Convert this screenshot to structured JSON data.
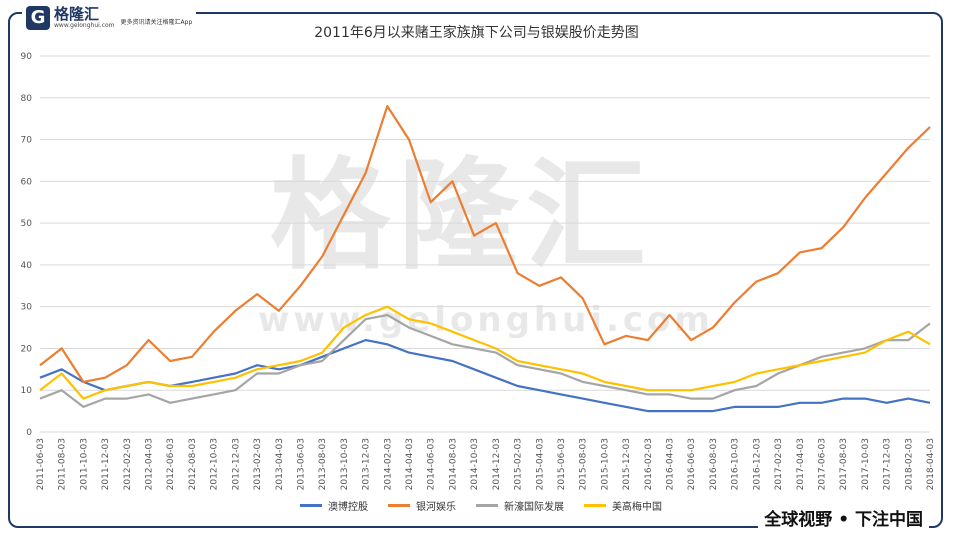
{
  "brand": {
    "logo_glyph": "G",
    "name": "格隆汇",
    "url": "www.gelonghui.com",
    "slogan": "更多资讯请关注格隆汇App"
  },
  "watermark": {
    "text": "格隆汇",
    "url": "www.gelonghui.com"
  },
  "footer_slogan": "全球视野 • 下注中国",
  "chart_data": {
    "type": "line",
    "title": "2011年6月以来赌王家族旗下公司与银娱股价走势图",
    "xlabel": "",
    "ylabel": "",
    "ylim": [
      0,
      90
    ],
    "yticks": [
      0,
      10,
      20,
      30,
      40,
      50,
      60,
      70,
      80,
      90
    ],
    "grid": true,
    "legend_position": "bottom",
    "x": [
      "2011-06-03",
      "2011-08-03",
      "2011-10-03",
      "2011-12-03",
      "2012-02-03",
      "2012-04-03",
      "2012-06-03",
      "2012-08-03",
      "2012-10-03",
      "2012-12-03",
      "2013-02-03",
      "2013-04-03",
      "2013-06-03",
      "2013-08-03",
      "2013-10-03",
      "2013-12-03",
      "2014-02-03",
      "2014-04-03",
      "2014-06-03",
      "2014-08-03",
      "2014-10-03",
      "2014-12-03",
      "2015-02-03",
      "2015-04-03",
      "2015-06-03",
      "2015-08-03",
      "2015-10-03",
      "2015-12-03",
      "2016-02-03",
      "2016-04-03",
      "2016-06-03",
      "2016-08-03",
      "2016-10-03",
      "2016-12-03",
      "2017-02-03",
      "2017-04-03",
      "2017-06-03",
      "2017-08-03",
      "2017-10-03",
      "2017-12-03",
      "2018-02-03",
      "2018-04-03"
    ],
    "series": [
      {
        "name": "澳博控股",
        "color": "#4472c4",
        "values": [
          13,
          15,
          12,
          10,
          11,
          12,
          11,
          12,
          13,
          14,
          16,
          15,
          16,
          18,
          20,
          22,
          21,
          19,
          18,
          17,
          15,
          13,
          11,
          10,
          9,
          8,
          7,
          6,
          5,
          5,
          5,
          5,
          6,
          6,
          6,
          7,
          7,
          8,
          8,
          7,
          8,
          7
        ]
      },
      {
        "name": "银河娱乐",
        "color": "#ed7d31",
        "values": [
          16,
          20,
          12,
          13,
          16,
          22,
          17,
          18,
          24,
          29,
          33,
          29,
          35,
          42,
          52,
          62,
          78,
          70,
          55,
          60,
          47,
          50,
          38,
          35,
          37,
          32,
          21,
          23,
          22,
          28,
          22,
          25,
          31,
          36,
          38,
          43,
          44,
          49,
          56,
          62,
          68,
          73
        ]
      },
      {
        "name": "新濠国际发展",
        "color": "#a5a5a5",
        "values": [
          8,
          10,
          6,
          8,
          8,
          9,
          7,
          8,
          9,
          10,
          14,
          14,
          16,
          17,
          22,
          27,
          28,
          25,
          23,
          21,
          20,
          19,
          16,
          15,
          14,
          12,
          11,
          10,
          9,
          9,
          8,
          8,
          10,
          11,
          14,
          16,
          18,
          19,
          20,
          22,
          22,
          26
        ]
      },
      {
        "name": "美高梅中国",
        "color": "#ffc000",
        "values": [
          10,
          14,
          8,
          10,
          11,
          12,
          11,
          11,
          12,
          13,
          15,
          16,
          17,
          19,
          25,
          28,
          30,
          27,
          26,
          24,
          22,
          20,
          17,
          16,
          15,
          14,
          12,
          11,
          10,
          10,
          10,
          11,
          12,
          14,
          15,
          16,
          17,
          18,
          19,
          22,
          24,
          21
        ]
      }
    ]
  }
}
